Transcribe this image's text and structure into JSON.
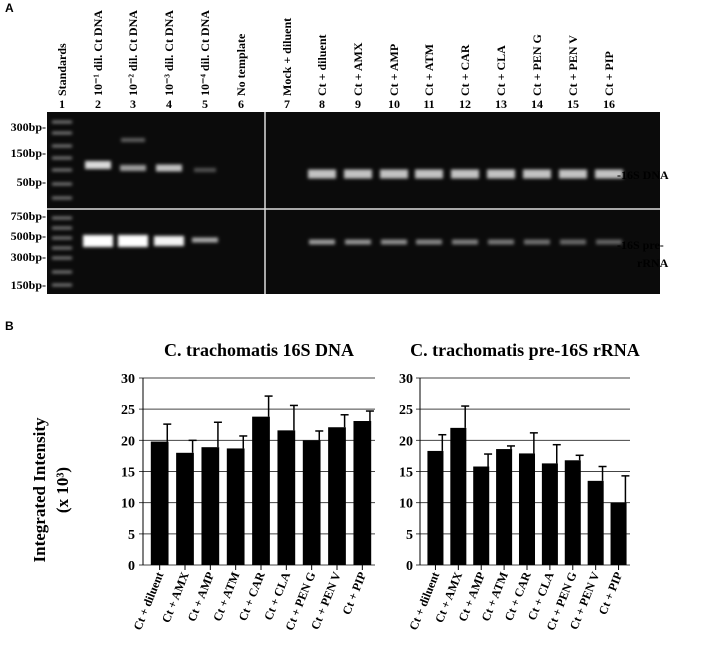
{
  "panel_a": {
    "label": "A",
    "lane_numbers": [
      "1",
      "2",
      "3",
      "4",
      "5",
      "6",
      "7",
      "8",
      "9",
      "10",
      "11",
      "12",
      "13",
      "14",
      "15",
      "16"
    ],
    "lane_labels": [
      "Standards",
      "10⁻¹ dil. Ct DNA",
      "10⁻² dil. Ct DNA",
      "10⁻³ dil. Ct DNA",
      "10⁻⁴ dil. Ct DNA",
      "No template",
      "Mock + diluent",
      "Ct + diluent",
      "Ct + AMX",
      "Ct + AMP",
      "Ct + ATM",
      "Ct + CAR",
      "Ct + CLA",
      "Ct + PEN G",
      "Ct + PEN V",
      "Ct + PIP"
    ],
    "markers_top": [
      "300bp-",
      "150bp-",
      "50bp-"
    ],
    "markers_bottom": [
      "750bp-",
      "500bp-",
      "300bp-",
      "150bp-"
    ],
    "band_labels": [
      "-16S DNA",
      "-16S pre-",
      "rRNA"
    ]
  },
  "panel_b": {
    "label": "B",
    "y_label": [
      "Integrated Intensity",
      "(x 10³)"
    ]
  },
  "chart_data": [
    {
      "type": "bar",
      "title": "C. trachomatis 16S DNA",
      "categories": [
        "Ct + diluent",
        "Ct + AMX",
        "Ct + AMP",
        "Ct + ATM",
        "Ct + CAR",
        "Ct + CLA",
        "Ct + PEN G",
        "Ct + PEN V",
        "Ct + PIP"
      ],
      "values": [
        19.8,
        18,
        18.9,
        18.7,
        23.8,
        21.6,
        20,
        22.1,
        23.1
      ],
      "errors": [
        2.8,
        2,
        4,
        2,
        3.3,
        4,
        1.5,
        2,
        1.6
      ],
      "color": "#000000",
      "ylim": [
        0,
        30
      ],
      "yticks": [
        0,
        5,
        10,
        15,
        20,
        25,
        30
      ],
      "grid": true
    },
    {
      "type": "bar",
      "title": "C. trachomatis pre-16S rRNA",
      "categories": [
        "Ct + diluent",
        "Ct + AMX",
        "Ct + AMP",
        "Ct + ATM",
        "Ct + CAR",
        "Ct + CLA",
        "Ct + PEN G",
        "Ct + PEN V",
        "Ct + PIP"
      ],
      "values": [
        18.3,
        22,
        15.8,
        18.6,
        17.9,
        16.3,
        16.8,
        13.5,
        10
      ],
      "errors": [
        2.6,
        3.5,
        2,
        0.5,
        3.3,
        3,
        0.8,
        2.3,
        4.3
      ],
      "color": "#000000",
      "ylim": [
        0,
        30
      ],
      "yticks": [
        0,
        5,
        10,
        15,
        20,
        25,
        30
      ],
      "grid": true
    }
  ]
}
